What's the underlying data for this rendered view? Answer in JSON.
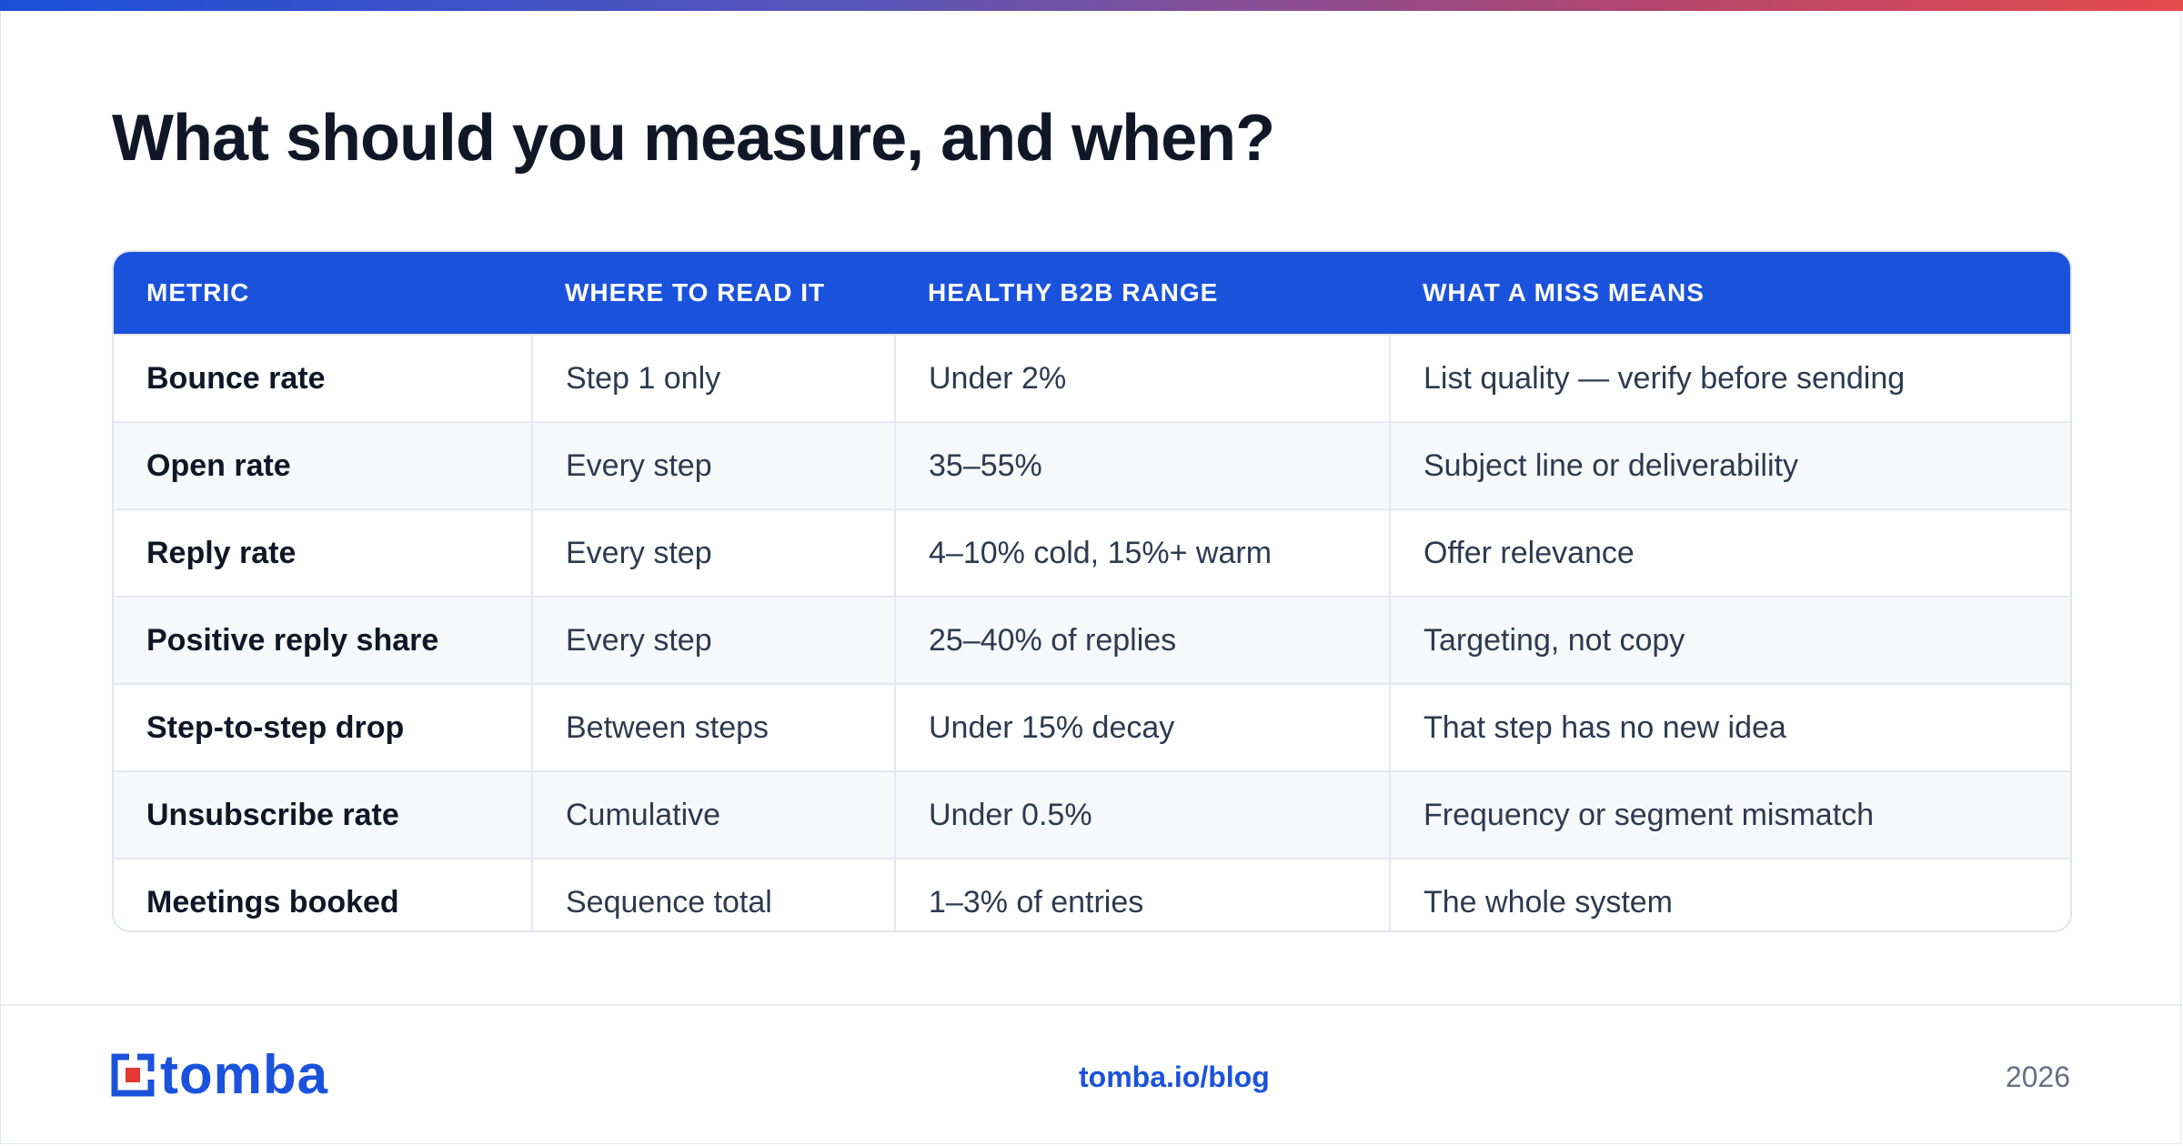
{
  "title": "What should you measure, and when?",
  "table": {
    "headers": [
      "METRIC",
      "WHERE TO READ IT",
      "HEALTHY B2B RANGE",
      "WHAT A MISS MEANS"
    ],
    "rows": [
      [
        "Bounce rate",
        "Step 1 only",
        "Under 2%",
        "List quality — verify before sending"
      ],
      [
        "Open rate",
        "Every step",
        "35–55%",
        "Subject line or deliverability"
      ],
      [
        "Reply rate",
        "Every step",
        "4–10% cold, 15%+ warm",
        "Offer relevance"
      ],
      [
        "Positive reply share",
        "Every step",
        "25–40% of replies",
        "Targeting, not copy"
      ],
      [
        "Step-to-step drop",
        "Between steps",
        "Under 15% decay",
        "That step has no new idea"
      ],
      [
        "Unsubscribe rate",
        "Cumulative",
        "Under 0.5%",
        "Frequency or segment mismatch"
      ],
      [
        "Meetings booked",
        "Sequence total",
        "1–3% of entries",
        "The whole system"
      ]
    ]
  },
  "footer": {
    "logo_text": "tomba",
    "link": "tomba.io/blog",
    "year": "2026"
  },
  "colors": {
    "accent": "#1b52dc",
    "logo_red": "#e53935",
    "gradient_start": "#1c4fd9",
    "gradient_end": "#e54b4b"
  }
}
